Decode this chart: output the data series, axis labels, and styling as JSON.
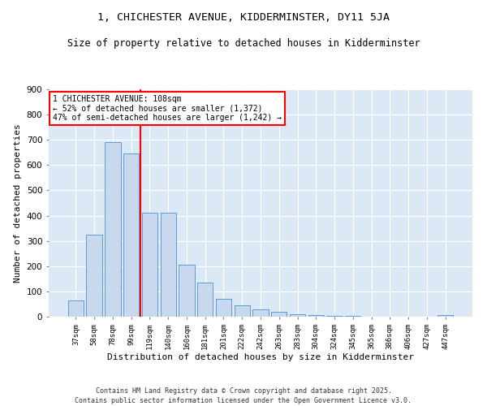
{
  "title_line1": "1, CHICHESTER AVENUE, KIDDERMINSTER, DY11 5JA",
  "title_line2": "Size of property relative to detached houses in Kidderminster",
  "xlabel": "Distribution of detached houses by size in Kidderminster",
  "ylabel": "Number of detached properties",
  "categories": [
    "37sqm",
    "58sqm",
    "78sqm",
    "99sqm",
    "119sqm",
    "140sqm",
    "160sqm",
    "181sqm",
    "201sqm",
    "222sqm",
    "242sqm",
    "263sqm",
    "283sqm",
    "304sqm",
    "324sqm",
    "345sqm",
    "365sqm",
    "386sqm",
    "406sqm",
    "427sqm",
    "447sqm"
  ],
  "values": [
    65,
    325,
    690,
    645,
    410,
    410,
    205,
    135,
    70,
    45,
    30,
    20,
    10,
    5,
    3,
    3,
    1,
    0,
    0,
    0,
    5
  ],
  "bar_color": "#c9d9ed",
  "bar_edge_color": "#5b9bd5",
  "vline_x": 3.5,
  "vline_color": "red",
  "annotation_text": "1 CHICHESTER AVENUE: 108sqm\n← 52% of detached houses are smaller (1,372)\n47% of semi-detached houses are larger (1,242) →",
  "annotation_box_color": "white",
  "annotation_box_edge": "red",
  "ylim": [
    0,
    900
  ],
  "yticks": [
    0,
    100,
    200,
    300,
    400,
    500,
    600,
    700,
    800,
    900
  ],
  "bg_color": "#dce8f5",
  "footer_text": "Contains HM Land Registry data © Crown copyright and database right 2025.\nContains public sector information licensed under the Open Government Licence v3.0.",
  "title_fontsize": 9.5,
  "subtitle_fontsize": 8.5,
  "xlabel_fontsize": 8,
  "ylabel_fontsize": 8
}
